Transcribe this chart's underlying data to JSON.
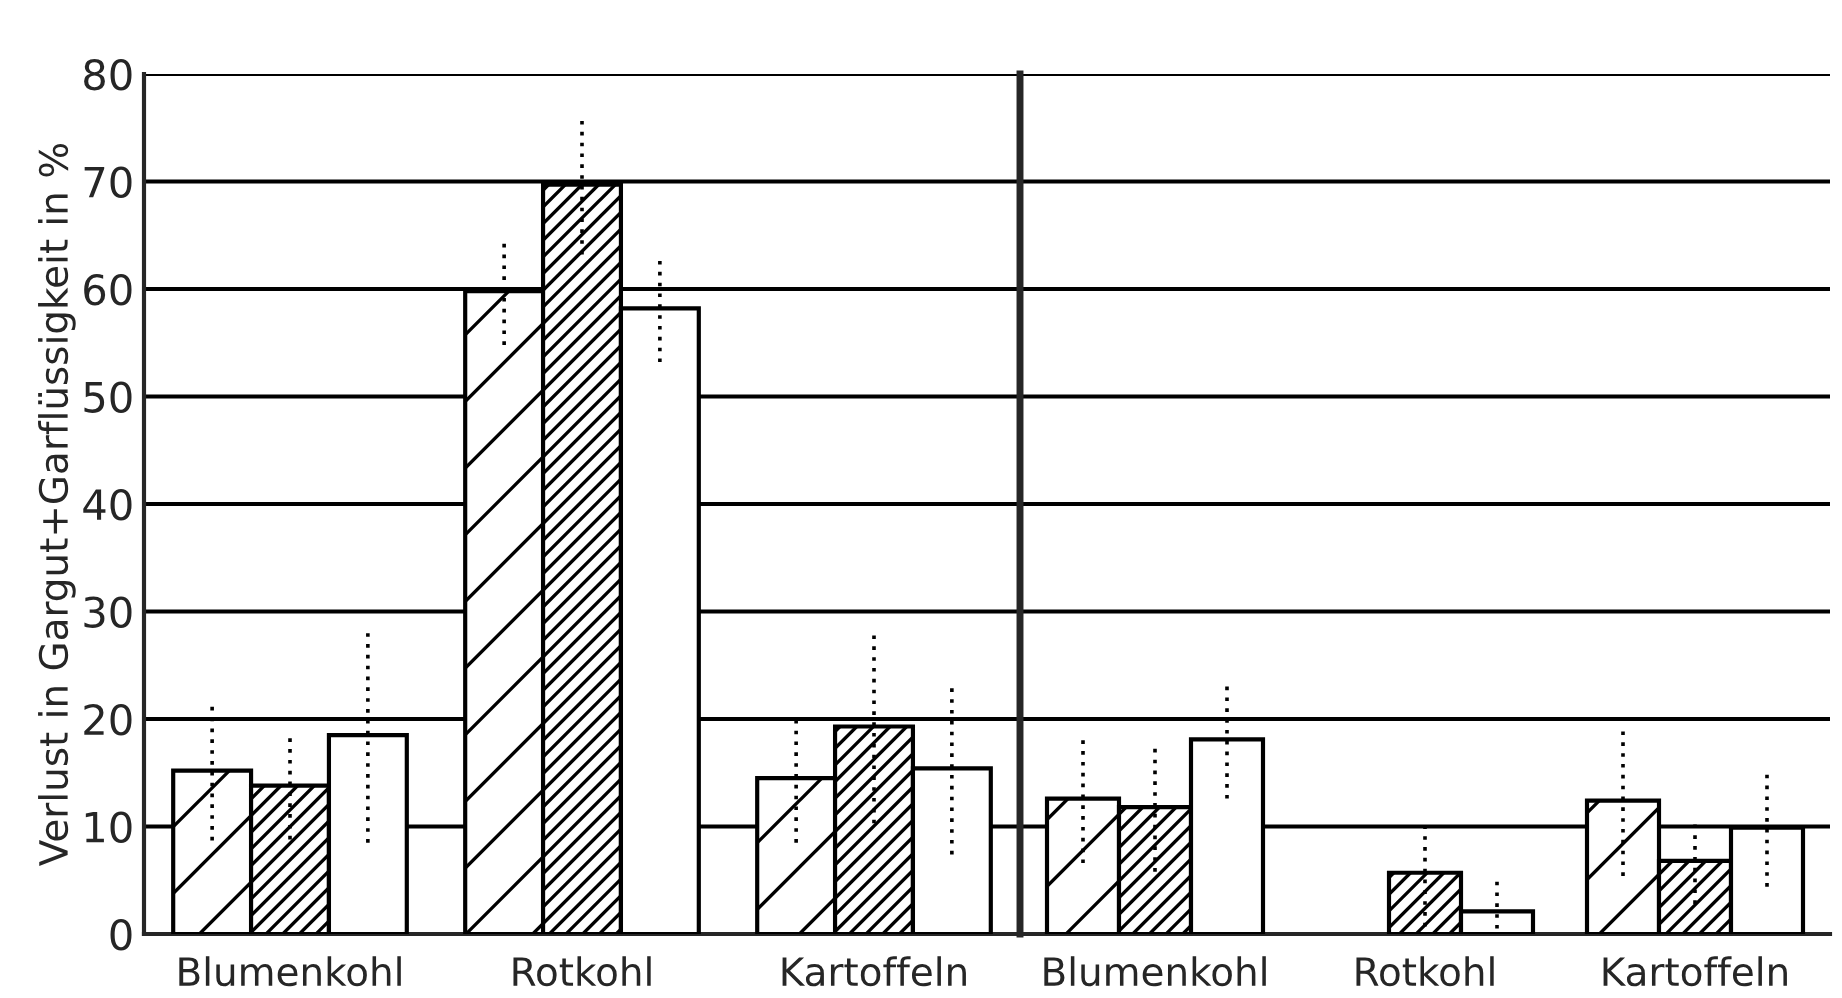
{
  "chart_data": [
    {
      "type": "bar",
      "ylabel": "Verlust in Gargut+Garflüssigkeit in %",
      "categories": [
        "Blumenkohl",
        "Rotkohl",
        "Kartoffeln"
      ],
      "series": [
        {
          "color": "#000000",
          "values": [
            15.2,
            59.8,
            14.5
          ],
          "errors": [
            6.5,
            5,
            6
          ]
        },
        {
          "color": "#000000",
          "values": [
            13.8,
            69.7,
            19.3
          ],
          "errors": [
            5,
            6.5,
            9
          ]
        },
        {
          "color": "#ffffff",
          "values": [
            18.5,
            58.2,
            15.4
          ],
          "errors": [
            10,
            5,
            8
          ]
        }
      ],
      "ylim": [
        0,
        80
      ],
      "yticks": [
        0,
        10,
        20,
        30,
        40,
        50,
        60,
        70,
        80
      ],
      "grid": "y"
    },
    {
      "type": "bar",
      "categories": [
        "Blumenkohl",
        "Rotkohl",
        "Kartoffeln"
      ],
      "series": [
        {
          "color": "#000000",
          "values": [
            12.6,
            null,
            12.4
          ],
          "errors": [
            6,
            null,
            7
          ]
        },
        {
          "color": "#000000",
          "values": [
            11.8,
            5.7,
            6.8
          ],
          "errors": [
            6,
            5,
            4
          ]
        },
        {
          "color": "#ffffff",
          "values": [
            18.1,
            2.1,
            9.9
          ],
          "errors": [
            5.5,
            [
              0.5,
              5.2
            ],
            5.5
          ]
        }
      ],
      "ylim": [
        0,
        80
      ],
      "yticks": [
        0,
        10,
        20,
        30,
        40,
        50,
        60,
        70,
        80
      ],
      "grid": "y",
      "tick_labels": "x"
    }
  ]
}
